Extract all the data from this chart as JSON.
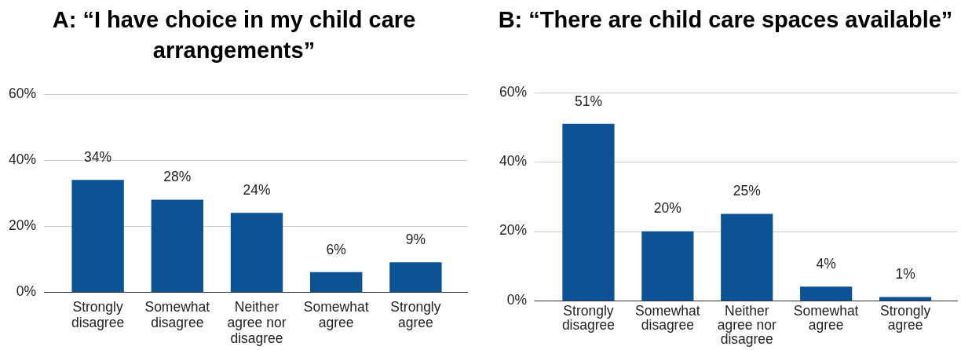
{
  "chart_data": [
    {
      "type": "bar",
      "title": "A: “I have choice in my child care arrangements”",
      "categories": [
        "Strongly disagree",
        "Somewhat disagree",
        "Neither agree nor disagree",
        "Somewhat agree",
        "Strongly agree"
      ],
      "values": [
        34,
        28,
        24,
        6,
        9
      ],
      "color": "#0b5394",
      "value_labels": [
        "34%",
        "28%",
        "24%",
        "6%",
        "9%"
      ],
      "ylim": [
        0,
        60
      ],
      "yticks": [
        {
          "value": 0,
          "label": "0%"
        },
        {
          "value": 20,
          "label": "20%"
        },
        {
          "value": 40,
          "label": "40%"
        },
        {
          "value": 60,
          "label": "60%"
        }
      ],
      "grid": "y"
    },
    {
      "type": "bar",
      "title": "B: “There are child care spaces available”",
      "categories": [
        "Strongly disagree",
        "Somewhat disagree",
        "Neither agree nor disagree",
        "Somewhat agree",
        "Strongly agree"
      ],
      "values": [
        51,
        20,
        25,
        4,
        1
      ],
      "color": "#0b5394",
      "value_labels": [
        "51%",
        "20%",
        "25%",
        "4%",
        "1%"
      ],
      "ylim": [
        0,
        60
      ],
      "yticks": [
        {
          "value": 0,
          "label": "0%"
        },
        {
          "value": 20,
          "label": "20%"
        },
        {
          "value": 40,
          "label": "40%"
        },
        {
          "value": 60,
          "label": "60%"
        }
      ],
      "grid": "y"
    }
  ]
}
